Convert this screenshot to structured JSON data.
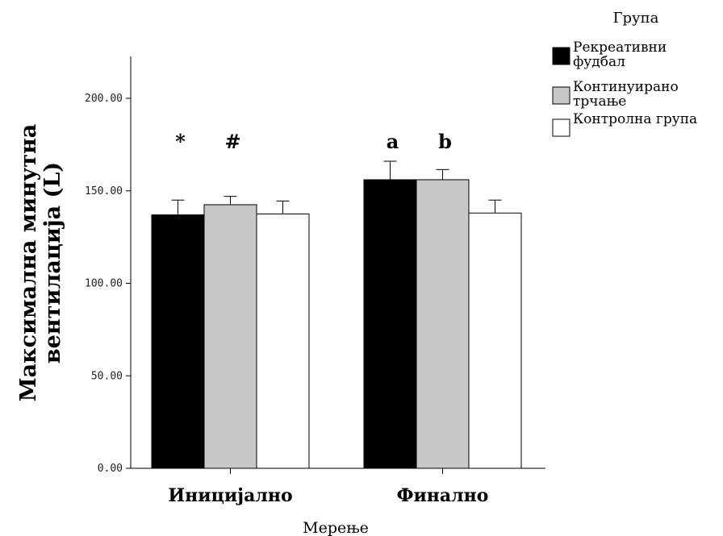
{
  "chart_data": {
    "type": "bar",
    "categories": [
      "Иницијално",
      "Финално"
    ],
    "series": [
      {
        "name": "Рекреативни фудбал",
        "values": [
          137,
          156
        ],
        "errors": [
          8,
          10
        ],
        "color": "#000000"
      },
      {
        "name": "Континуирано трчање",
        "values": [
          142.5,
          156
        ],
        "errors": [
          4.5,
          5.5
        ],
        "color": "#c8c8c8"
      },
      {
        "name": "Контролна група",
        "values": [
          137.5,
          138
        ],
        "errors": [
          7,
          7
        ],
        "color": "#ffffff"
      }
    ],
    "annotations": [
      {
        "text": "*",
        "category": 0,
        "series": 0
      },
      {
        "text": "#",
        "category": 0,
        "series": 1
      },
      {
        "text": "a",
        "category": 1,
        "series": 0
      },
      {
        "text": "b",
        "category": 1,
        "series": 1
      }
    ],
    "xlabel": "Мерење",
    "ylabel_lines": [
      "Максимална минутна",
      "вентилација (L)"
    ],
    "ylim": [
      0,
      220
    ],
    "yticks": [
      "0.00",
      "50.00",
      "100.00",
      "150.00",
      "200.00"
    ],
    "legend": {
      "title": "Група",
      "position": "right",
      "entries": [
        {
          "lines": [
            "Рекреативни",
            "фудбал"
          ],
          "color": "#000000"
        },
        {
          "lines": [
            "Континуирано",
            "трчање"
          ],
          "color": "#c8c8c8"
        },
        {
          "lines": [
            "Контролна група"
          ],
          "color": "#ffffff"
        }
      ]
    },
    "grid": false
  }
}
